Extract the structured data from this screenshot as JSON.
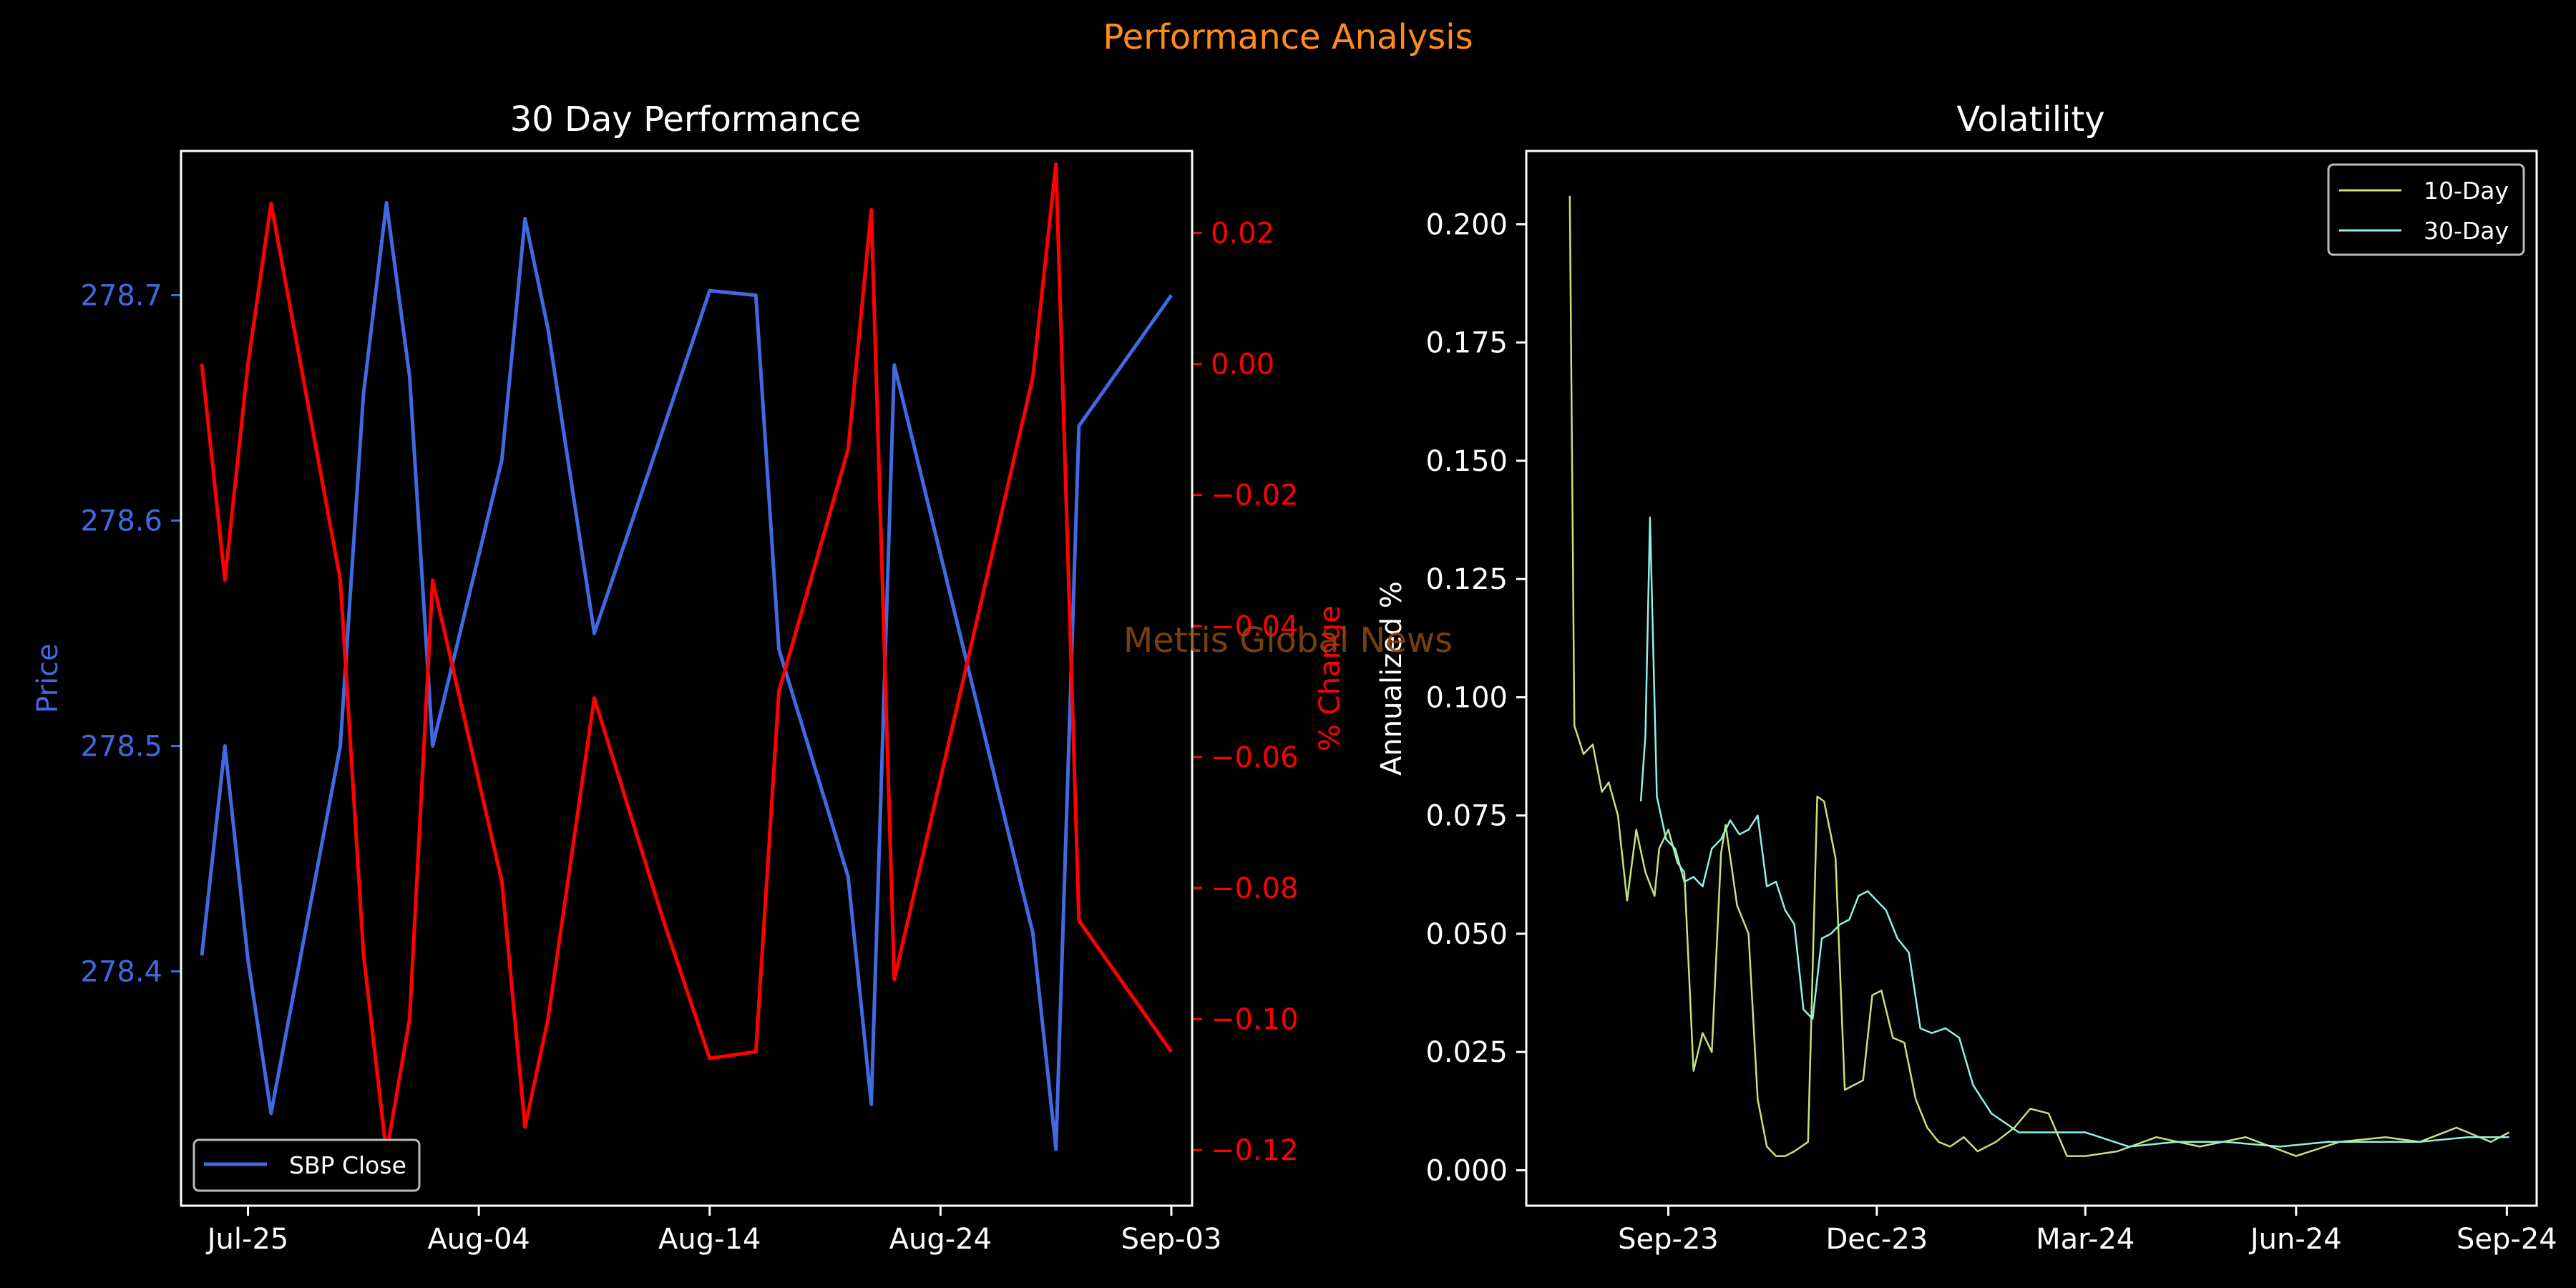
{
  "suptitle": "Performance Analysis",
  "watermark": "Mettis Global News",
  "colors": {
    "background": "#000000",
    "suptitle": "#ff8c1a",
    "price": "#4169e1",
    "change": "#ff0000",
    "vol10": "#c5e37a",
    "vol30": "#8ff2e4",
    "watermark": "#8c4a12",
    "axis": "#ffffff"
  },
  "chart_data": [
    {
      "type": "line",
      "title": "30 Day Performance",
      "ylabel": "Price",
      "y2label": "% Change",
      "legend": [
        "SBP Close"
      ],
      "legend_position": "lower-left",
      "x_dates": [
        "2025-07-23",
        "2025-07-24",
        "2025-07-25",
        "2025-07-26",
        "2025-07-29",
        "2025-07-30",
        "2025-07-31",
        "2025-08-01",
        "2025-08-02",
        "2025-08-05",
        "2025-08-06",
        "2025-08-07",
        "2025-08-09",
        "2025-08-12",
        "2025-08-14",
        "2025-08-16",
        "2025-08-17",
        "2025-08-20",
        "2025-08-21",
        "2025-08-22",
        "2025-08-28",
        "2025-08-29",
        "2025-08-30",
        "2025-09-03"
      ],
      "x_ticks": [
        "Jul-25",
        "Aug-04",
        "Aug-14",
        "Aug-24",
        "Sep-03"
      ],
      "ylim": [
        278.296,
        278.764
      ],
      "y_ticks": [
        278.4,
        278.5,
        278.6,
        278.7
      ],
      "y2lim": [
        -0.1285,
        0.0325
      ],
      "y2_ticks": [
        0.02,
        0.0,
        -0.02,
        -0.04,
        -0.06,
        -0.08,
        -0.1,
        -0.12
      ],
      "y2_ticklabels": [
        "0.02",
        "0.00",
        "−0.02",
        "−0.04",
        "−0.06",
        "−0.08",
        "−0.10",
        "−0.12"
      ],
      "series": [
        {
          "name": "SBP Close",
          "axis": "left",
          "values": [
            278.407,
            278.5,
            278.405,
            278.337,
            278.5,
            278.656,
            278.741,
            278.664,
            278.5,
            278.627,
            278.734,
            278.685,
            278.55,
            278.641,
            278.702,
            278.7,
            278.543,
            278.442,
            278.341,
            278.669,
            278.417,
            278.321,
            278.642,
            278.7
          ]
        },
        {
          "axis": "right",
          "values": [
            0.0,
            -0.033,
            0.0,
            0.0245,
            -0.033,
            -0.09,
            -0.1205,
            -0.1,
            -0.033,
            -0.079,
            -0.1165,
            -0.1,
            -0.051,
            -0.085,
            -0.106,
            -0.105,
            -0.05,
            -0.013,
            0.0235,
            -0.094,
            -0.002,
            0.0305,
            -0.085,
            -0.105
          ]
        }
      ]
    },
    {
      "type": "line",
      "title": "Volatility",
      "ylabel": "Annualized %",
      "x_ticks": [
        "Sep-23",
        "Dec-23",
        "Mar-24",
        "Jun-24",
        "Sep-24"
      ],
      "ylim": [
        -0.0075,
        0.2155
      ],
      "y_ticks": [
        "0.000",
        "0.025",
        "0.050",
        "0.075",
        "0.100",
        "0.125",
        "0.150",
        "0.175",
        "0.200"
      ],
      "grid": false,
      "legend": [
        "10-Day",
        "30-Day"
      ],
      "legend_position": "top-right",
      "series": [
        {
          "name": "10-Day",
          "x": [
            "2023-07-20",
            "2023-07-22",
            "2023-07-26",
            "2023-07-30",
            "2023-08-03",
            "2023-08-06",
            "2023-08-10",
            "2023-08-14",
            "2023-08-18",
            "2023-08-22",
            "2023-08-26",
            "2023-08-28",
            "2023-09-01",
            "2023-09-05",
            "2023-09-08",
            "2023-09-12",
            "2023-09-16",
            "2023-09-20",
            "2023-09-24",
            "2023-09-26",
            "2023-10-01",
            "2023-10-06",
            "2023-10-10",
            "2023-10-14",
            "2023-10-18",
            "2023-10-22",
            "2023-10-26",
            "2023-11-01",
            "2023-11-05",
            "2023-11-08",
            "2023-11-13",
            "2023-11-17",
            "2023-11-21",
            "2023-11-25",
            "2023-11-29",
            "2023-12-03",
            "2023-12-08",
            "2023-12-13",
            "2023-12-18",
            "2023-12-23",
            "2023-12-28",
            "2024-01-02",
            "2024-01-08",
            "2024-01-14",
            "2024-01-22",
            "2024-01-30",
            "2024-02-06",
            "2024-02-14",
            "2024-02-22",
            "2024-03-01",
            "2024-03-15",
            "2024-04-01",
            "2024-04-20",
            "2024-05-10",
            "2024-06-01",
            "2024-06-20",
            "2024-07-10",
            "2024-07-25",
            "2024-08-10",
            "2024-08-25",
            "2024-09-02"
          ],
          "values": [
            0.206,
            0.094,
            0.088,
            0.09,
            0.08,
            0.082,
            0.075,
            0.057,
            0.072,
            0.063,
            0.058,
            0.068,
            0.072,
            0.065,
            0.063,
            0.021,
            0.029,
            0.025,
            0.067,
            0.073,
            0.056,
            0.05,
            0.015,
            0.005,
            0.003,
            0.003,
            0.004,
            0.006,
            0.079,
            0.078,
            0.066,
            0.017,
            0.018,
            0.019,
            0.037,
            0.038,
            0.028,
            0.027,
            0.015,
            0.009,
            0.006,
            0.005,
            0.007,
            0.004,
            0.006,
            0.009,
            0.013,
            0.012,
            0.003,
            0.003,
            0.004,
            0.007,
            0.005,
            0.007,
            0.003,
            0.006,
            0.007,
            0.006,
            0.009,
            0.006,
            0.008
          ]
        },
        {
          "name": "30-Day",
          "x": [
            "2023-08-20",
            "2023-08-22",
            "2023-08-24",
            "2023-08-27",
            "2023-08-31",
            "2023-09-04",
            "2023-09-08",
            "2023-09-12",
            "2023-09-16",
            "2023-09-20",
            "2023-09-24",
            "2023-09-28",
            "2023-10-02",
            "2023-10-06",
            "2023-10-10",
            "2023-10-14",
            "2023-10-18",
            "2023-10-22",
            "2023-10-26",
            "2023-10-30",
            "2023-11-03",
            "2023-11-07",
            "2023-11-11",
            "2023-11-15",
            "2023-11-19",
            "2023-11-23",
            "2023-11-27",
            "2023-12-01",
            "2023-12-05",
            "2023-12-10",
            "2023-12-15",
            "2023-12-20",
            "2023-12-25",
            "2023-12-31",
            "2024-01-06",
            "2024-01-12",
            "2024-01-20",
            "2024-02-01",
            "2024-02-15",
            "2024-03-01",
            "2024-03-20",
            "2024-04-10",
            "2024-05-01",
            "2024-05-25",
            "2024-06-15",
            "2024-07-05",
            "2024-07-25",
            "2024-08-15",
            "2024-09-02"
          ],
          "values": [
            0.078,
            0.092,
            0.138,
            0.079,
            0.07,
            0.068,
            0.061,
            0.062,
            0.06,
            0.068,
            0.07,
            0.074,
            0.071,
            0.072,
            0.075,
            0.06,
            0.061,
            0.055,
            0.052,
            0.034,
            0.032,
            0.049,
            0.05,
            0.052,
            0.053,
            0.058,
            0.059,
            0.057,
            0.055,
            0.049,
            0.046,
            0.03,
            0.029,
            0.03,
            0.028,
            0.018,
            0.012,
            0.008,
            0.008,
            0.008,
            0.005,
            0.006,
            0.006,
            0.005,
            0.006,
            0.006,
            0.006,
            0.007,
            0.007
          ]
        }
      ]
    }
  ]
}
